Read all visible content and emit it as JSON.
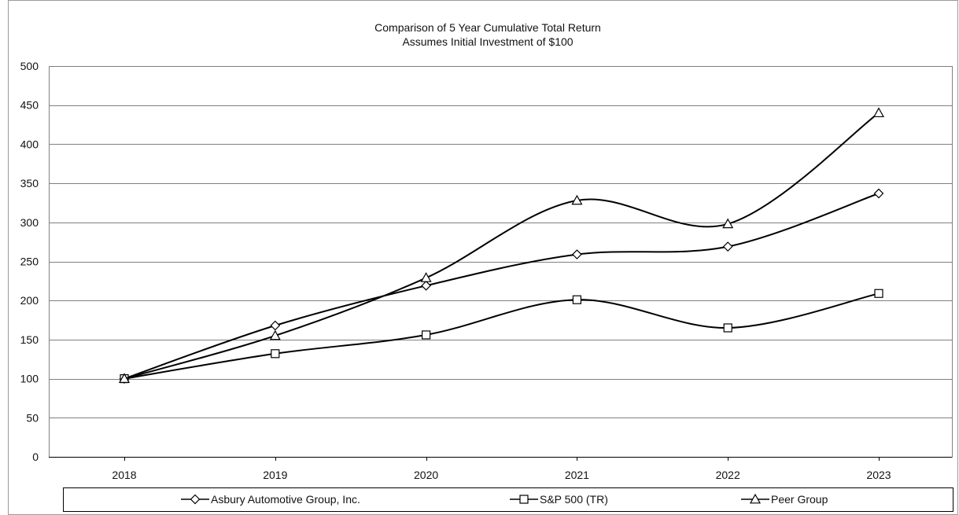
{
  "chart_data": {
    "type": "line",
    "title": "Comparison of 5 Year Cumulative Total Return",
    "subtitle": "Assumes Initial Investment of $100",
    "xlabel": "",
    "ylabel": "",
    "categories": [
      "2018",
      "2019",
      "2020",
      "2021",
      "2022",
      "2023"
    ],
    "ylim": [
      0,
      500
    ],
    "yticks": [
      0,
      50,
      100,
      150,
      200,
      250,
      300,
      350,
      400,
      450,
      500
    ],
    "grid": "horizontal",
    "legend_position": "bottom",
    "series": [
      {
        "name": "Asbury Automotive Group, Inc.",
        "marker": "diamond",
        "values": [
          100,
          168,
          219,
          259,
          269,
          337
        ]
      },
      {
        "name": "S&P 500 (TR)",
        "marker": "square",
        "values": [
          100,
          132,
          156,
          201,
          165,
          209
        ]
      },
      {
        "name": "Peer Group",
        "marker": "triangle",
        "values": [
          100,
          155,
          229,
          328,
          298,
          440
        ]
      }
    ],
    "colors": {
      "line": "#000000",
      "grid": "#808080",
      "marker_fill": "#ffffff"
    }
  }
}
